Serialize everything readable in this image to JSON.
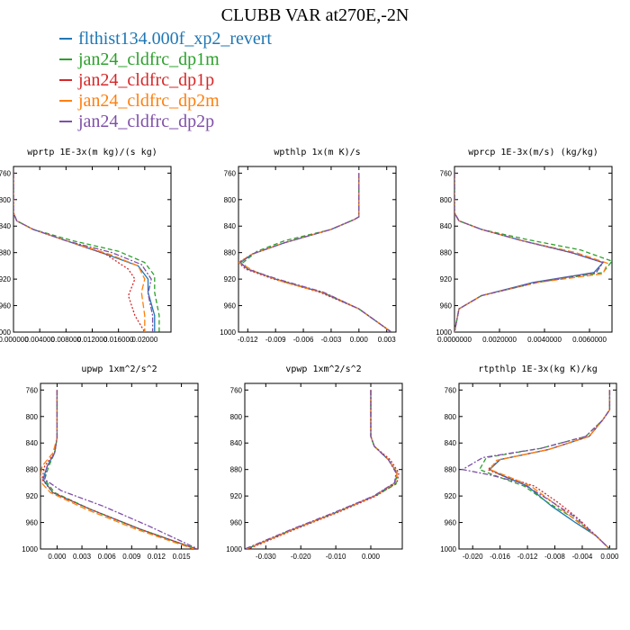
{
  "title": "CLUBB VAR at270E,-2N",
  "legend": [
    {
      "name": "flthist134.000f_xp2_revert",
      "color": "#1f77b4"
    },
    {
      "name": "jan24_cldfrc_dp1m",
      "color": "#2ca02c"
    },
    {
      "name": "jan24_cldfrc_dp1p",
      "color": "#d62728"
    },
    {
      "name": "jan24_cldfrc_dp2m",
      "color": "#ff7f0e"
    },
    {
      "name": "jan24_cldfrc_dp2p",
      "color": "#7f4fa8"
    }
  ],
  "chart_data": [
    {
      "type": "line",
      "title": "wprtp  1E-3x(m kg)/(s kg)",
      "xlim": [
        0,
        0.024
      ],
      "ylim": [
        1000,
        750
      ],
      "xticks": [
        0,
        0.004,
        0.008,
        0.012,
        0.016,
        0.02
      ],
      "xtick_labels": [
        "0.000000",
        "0.004000",
        "0.008000",
        "0.012000",
        "0.016000",
        "0.02000"
      ],
      "yticks": [
        760,
        800,
        840,
        880,
        920,
        960,
        1000
      ],
      "series": [
        {
          "name": "flthist134.000f_xp2_revert",
          "x": [
            0,
            0,
            0.0005,
            0.003,
            0.008,
            0.014,
            0.019,
            0.0205,
            0.0205,
            0.0215,
            0.0215
          ],
          "y": [
            760,
            820,
            832,
            845,
            862,
            882,
            900,
            920,
            940,
            975,
            1000
          ]
        },
        {
          "name": "jan24_cldfrc_dp1m",
          "x": [
            0,
            0,
            0.0005,
            0.003,
            0.009,
            0.016,
            0.02,
            0.0215,
            0.0215,
            0.0222,
            0.0222
          ],
          "y": [
            760,
            820,
            832,
            845,
            862,
            878,
            895,
            915,
            940,
            975,
            1000
          ]
        },
        {
          "name": "jan24_cldfrc_dp1p",
          "x": [
            0,
            0,
            0.0005,
            0.003,
            0.008,
            0.014,
            0.0175,
            0.0185,
            0.0175,
            0.0185,
            0.02
          ],
          "y": [
            760,
            820,
            832,
            845,
            862,
            882,
            905,
            920,
            945,
            975,
            1000
          ]
        },
        {
          "name": "jan24_cldfrc_dp2m",
          "x": [
            0,
            0,
            0.0005,
            0.003,
            0.008,
            0.0145,
            0.019,
            0.02,
            0.0195,
            0.02,
            0.02
          ],
          "y": [
            760,
            820,
            832,
            845,
            862,
            882,
            900,
            920,
            940,
            975,
            1000
          ]
        },
        {
          "name": "jan24_cldfrc_dp2p",
          "x": [
            0,
            0,
            0.0005,
            0.003,
            0.008,
            0.015,
            0.0195,
            0.021,
            0.0205,
            0.0212,
            0.0212
          ],
          "y": [
            760,
            820,
            832,
            845,
            862,
            880,
            898,
            920,
            942,
            975,
            1000
          ]
        }
      ]
    },
    {
      "type": "line",
      "title": "wpthlp  1x(m K)/s",
      "xlim": [
        -0.013,
        0.004
      ],
      "ylim": [
        1000,
        750
      ],
      "xticks": [
        -0.012,
        -0.009,
        -0.006,
        -0.003,
        0,
        0.003
      ],
      "xtick_labels": [
        "-0.012",
        "-0.009",
        "-0.006",
        "-0.003",
        "0.000",
        "0.003"
      ],
      "yticks": [
        760,
        800,
        840,
        880,
        920,
        960,
        1000
      ],
      "series": [
        {
          "name": "flthist134.000f_xp2_revert",
          "x": [
            0,
            0,
            -0.0005,
            -0.003,
            -0.008,
            -0.0115,
            -0.0128,
            -0.012,
            -0.009,
            -0.004,
            0,
            0.0035
          ],
          "y": [
            760,
            826,
            830,
            845,
            865,
            882,
            895,
            905,
            920,
            940,
            965,
            1000
          ]
        },
        {
          "name": "jan24_cldfrc_dp1m",
          "x": [
            0,
            0,
            -0.0005,
            -0.003,
            -0.008,
            -0.011,
            -0.0125,
            -0.012,
            -0.009,
            -0.004,
            0,
            0.0035
          ],
          "y": [
            760,
            826,
            830,
            845,
            862,
            878,
            895,
            905,
            920,
            940,
            965,
            1000
          ]
        },
        {
          "name": "jan24_cldfrc_dp1p",
          "x": [
            0,
            0,
            -0.0005,
            -0.003,
            -0.008,
            -0.0115,
            -0.013,
            -0.0122,
            -0.0092,
            -0.0042,
            0,
            0.0035
          ],
          "y": [
            760,
            826,
            830,
            845,
            865,
            882,
            895,
            905,
            920,
            940,
            965,
            1000
          ]
        },
        {
          "name": "jan24_cldfrc_dp2m",
          "x": [
            0,
            0,
            -0.0005,
            -0.003,
            -0.008,
            -0.0115,
            -0.013,
            -0.011,
            -0.008,
            -0.0035,
            0,
            0.0035
          ],
          "y": [
            760,
            826,
            830,
            845,
            865,
            882,
            895,
            910,
            925,
            942,
            965,
            1000
          ]
        },
        {
          "name": "jan24_cldfrc_dp2p",
          "x": [
            0,
            0,
            -0.0005,
            -0.003,
            -0.008,
            -0.0115,
            -0.0128,
            -0.012,
            -0.0088,
            -0.0038,
            0,
            0.0035
          ],
          "y": [
            760,
            826,
            830,
            845,
            865,
            882,
            895,
            905,
            920,
            940,
            965,
            1000
          ]
        }
      ]
    },
    {
      "type": "line",
      "title": "wprcp  1E-3x(m/s) (kg/kg)",
      "xlim": [
        0,
        0.007
      ],
      "ylim": [
        1000,
        750
      ],
      "xticks": [
        0,
        0.002,
        0.004,
        0.006
      ],
      "xtick_labels": [
        "0.0000000",
        "0.0020000",
        "0.0040000",
        "0.0060000"
      ],
      "yticks": [
        760,
        800,
        840,
        880,
        920,
        960,
        1000
      ],
      "series": [
        {
          "name": "flthist134.000f_xp2_revert",
          "x": [
            0,
            0,
            0.0002,
            0.0012,
            0.003,
            0.0052,
            0.0066,
            0.0062,
            0.0035,
            0.0012,
            0.0002,
            0
          ],
          "y": [
            760,
            820,
            832,
            845,
            862,
            880,
            895,
            910,
            925,
            945,
            965,
            1000
          ]
        },
        {
          "name": "jan24_cldfrc_dp1m",
          "x": [
            0,
            0,
            0.0002,
            0.0012,
            0.0032,
            0.0056,
            0.007,
            0.0066,
            0.0037,
            0.0012,
            0.0002,
            0
          ],
          "y": [
            760,
            820,
            832,
            845,
            860,
            876,
            893,
            910,
            925,
            945,
            965,
            1000
          ]
        },
        {
          "name": "jan24_cldfrc_dp1p",
          "x": [
            0,
            0,
            0.0002,
            0.0012,
            0.003,
            0.0052,
            0.0066,
            0.0063,
            0.0036,
            0.0012,
            0.0002,
            0
          ],
          "y": [
            760,
            820,
            832,
            845,
            862,
            880,
            895,
            910,
            925,
            945,
            965,
            1000
          ]
        },
        {
          "name": "jan24_cldfrc_dp2m",
          "x": [
            0,
            0,
            0.0002,
            0.0012,
            0.003,
            0.0054,
            0.0068,
            0.0066,
            0.0037,
            0.0012,
            0.0002,
            0
          ],
          "y": [
            760,
            820,
            832,
            845,
            862,
            880,
            896,
            912,
            925,
            945,
            965,
            1000
          ]
        },
        {
          "name": "jan24_cldfrc_dp2p",
          "x": [
            0,
            0,
            0.0002,
            0.0012,
            0.003,
            0.0052,
            0.0066,
            0.0063,
            0.0036,
            0.0012,
            0.0002,
            0
          ],
          "y": [
            760,
            820,
            832,
            845,
            862,
            880,
            895,
            910,
            925,
            945,
            965,
            1000
          ]
        }
      ]
    },
    {
      "type": "line",
      "title": "upwp  1xm^2/s^2",
      "xlim": [
        -0.002,
        0.017
      ],
      "ylim": [
        1000,
        750
      ],
      "xticks": [
        0,
        0.003,
        0.006,
        0.009,
        0.012,
        0.015
      ],
      "xtick_labels": [
        "0.000",
        "0.003",
        "0.006",
        "0.009",
        "0.012",
        "0.015"
      ],
      "yticks": [
        760,
        800,
        840,
        880,
        920,
        960,
        1000
      ],
      "series": [
        {
          "name": "flthist134.000f_xp2_revert",
          "x": [
            0,
            0,
            -0.0003,
            -0.0012,
            -0.0017,
            -0.0005,
            0.004,
            0.01,
            0.0168
          ],
          "y": [
            760,
            832,
            855,
            875,
            895,
            915,
            940,
            970,
            1000
          ]
        },
        {
          "name": "jan24_cldfrc_dp1m",
          "x": [
            0,
            0,
            -0.0003,
            -0.001,
            -0.0015,
            -0.0003,
            0.004,
            0.01,
            0.0168
          ],
          "y": [
            760,
            832,
            855,
            875,
            895,
            915,
            940,
            970,
            1000
          ]
        },
        {
          "name": "jan24_cldfrc_dp1p",
          "x": [
            0,
            0,
            -0.0003,
            -0.0015,
            -0.0018,
            -0.0005,
            0.004,
            0.01,
            0.0168
          ],
          "y": [
            760,
            832,
            855,
            875,
            895,
            915,
            940,
            970,
            1000
          ]
        },
        {
          "name": "jan24_cldfrc_dp2m",
          "x": [
            0,
            0,
            -0.0005,
            -0.0018,
            -0.0021,
            -0.0008,
            0.0035,
            0.0095,
            0.0165
          ],
          "y": [
            760,
            832,
            855,
            875,
            897,
            915,
            940,
            970,
            1000
          ]
        },
        {
          "name": "jan24_cldfrc_dp2p",
          "x": [
            0,
            0,
            -0.0003,
            -0.0012,
            -0.0015,
            0.0005,
            0.0055,
            0.011,
            0.017
          ],
          "y": [
            760,
            832,
            855,
            875,
            895,
            912,
            935,
            965,
            1000
          ]
        }
      ]
    },
    {
      "type": "line",
      "title": "vpwp  1xm^2/s^2",
      "xlim": [
        -0.036,
        0.009
      ],
      "ylim": [
        1000,
        750
      ],
      "xticks": [
        -0.03,
        -0.02,
        -0.01,
        0
      ],
      "xtick_labels": [
        "-0.030",
        "-0.020",
        "-0.010",
        "0.000"
      ],
      "yticks": [
        760,
        800,
        840,
        880,
        920,
        960,
        1000
      ],
      "series": [
        {
          "name": "flthist134.000f_xp2_revert",
          "x": [
            0,
            0,
            0.001,
            0.005,
            0.0075,
            0.007,
            0.001,
            -0.01,
            -0.022,
            -0.0355
          ],
          "y": [
            760,
            830,
            845,
            865,
            885,
            900,
            920,
            945,
            970,
            1000
          ]
        },
        {
          "name": "jan24_cldfrc_dp1m",
          "x": [
            0,
            0,
            0.001,
            0.005,
            0.0075,
            0.0072,
            0.0012,
            -0.01,
            -0.022,
            -0.0355
          ],
          "y": [
            760,
            830,
            845,
            865,
            885,
            902,
            920,
            945,
            970,
            1000
          ]
        },
        {
          "name": "jan24_cldfrc_dp1p",
          "x": [
            0,
            0,
            0.001,
            0.0055,
            0.008,
            0.0075,
            0.0015,
            -0.0095,
            -0.0215,
            -0.035
          ],
          "y": [
            760,
            830,
            845,
            865,
            885,
            900,
            920,
            945,
            970,
            1000
          ]
        },
        {
          "name": "jan24_cldfrc_dp2m",
          "x": [
            0,
            0,
            0.001,
            0.005,
            0.0075,
            0.007,
            0.001,
            -0.01,
            -0.022,
            -0.0355
          ],
          "y": [
            760,
            830,
            845,
            865,
            885,
            900,
            920,
            945,
            970,
            1000
          ]
        },
        {
          "name": "jan24_cldfrc_dp2p",
          "x": [
            0,
            0,
            0.001,
            0.005,
            0.0072,
            0.0068,
            0.0008,
            -0.0105,
            -0.0225,
            -0.036
          ],
          "y": [
            760,
            830,
            845,
            865,
            885,
            900,
            920,
            945,
            970,
            1000
          ]
        }
      ]
    },
    {
      "type": "line",
      "title": "rtpthlp  1E-3x(kg K)/kg",
      "xlim": [
        -0.022,
        0.001
      ],
      "ylim": [
        1000,
        750
      ],
      "xticks": [
        -0.02,
        -0.016,
        -0.012,
        -0.008,
        -0.004,
        0
      ],
      "xtick_labels": [
        "-0.020",
        "-0.016",
        "-0.012",
        "-0.008",
        "-0.004",
        "0.000"
      ],
      "yticks": [
        760,
        800,
        840,
        880,
        920,
        960,
        1000
      ],
      "series": [
        {
          "name": "flthist134.000f_xp2_revert",
          "x": [
            0,
            0,
            -0.001,
            -0.003,
            -0.009,
            -0.016,
            -0.0175,
            -0.0155,
            -0.012,
            -0.0085,
            -0.005,
            -0.002,
            0
          ],
          "y": [
            760,
            790,
            805,
            830,
            850,
            865,
            880,
            890,
            905,
            935,
            960,
            980,
            1000
          ]
        },
        {
          "name": "jan24_cldfrc_dp1m",
          "x": [
            0,
            0,
            -0.001,
            -0.0035,
            -0.01,
            -0.018,
            -0.019,
            -0.016,
            -0.0125,
            -0.009,
            -0.005,
            -0.002,
            0
          ],
          "y": [
            760,
            790,
            805,
            830,
            848,
            862,
            880,
            892,
            905,
            930,
            955,
            980,
            1000
          ]
        },
        {
          "name": "jan24_cldfrc_dp1p",
          "x": [
            0,
            0,
            -0.001,
            -0.003,
            -0.009,
            -0.016,
            -0.0178,
            -0.0155,
            -0.011,
            -0.0075,
            -0.0045,
            -0.002,
            0
          ],
          "y": [
            760,
            790,
            805,
            830,
            850,
            865,
            880,
            890,
            905,
            930,
            955,
            980,
            1000
          ]
        },
        {
          "name": "jan24_cldfrc_dp2m",
          "x": [
            0,
            0,
            -0.001,
            -0.003,
            -0.009,
            -0.0165,
            -0.0175,
            -0.015,
            -0.0115,
            -0.008,
            -0.0048,
            -0.002,
            0
          ],
          "y": [
            760,
            790,
            805,
            830,
            850,
            866,
            880,
            890,
            905,
            932,
            958,
            980,
            1000
          ]
        },
        {
          "name": "jan24_cldfrc_dp2p",
          "x": [
            0,
            0,
            -0.001,
            -0.0035,
            -0.01,
            -0.0185,
            -0.0215,
            -0.0175,
            -0.013,
            -0.009,
            -0.005,
            -0.002,
            0
          ],
          "y": [
            760,
            790,
            805,
            830,
            848,
            862,
            880,
            888,
            900,
            925,
            952,
            980,
            1000
          ]
        }
      ]
    }
  ]
}
